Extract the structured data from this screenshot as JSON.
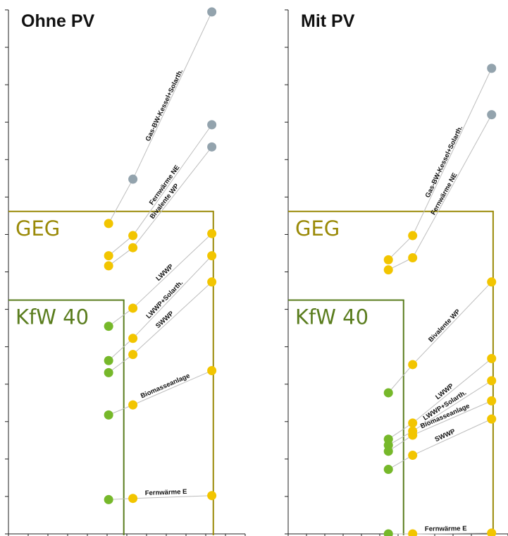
{
  "colors": {
    "geg": "#9a8a08",
    "kfw": "#5a7d1e",
    "green": "#76b82a",
    "yellow": "#f2c500",
    "gray": "#93a3ad",
    "link": "#bdbdbd",
    "axis": "#222222"
  },
  "chart_data": [
    {
      "type": "scatter",
      "title": "Ohne PV",
      "x_ticks": 12,
      "y_ticks": 14,
      "regions": [
        {
          "label": "GEG",
          "x_max": 6.75,
          "y_max": 8.0
        },
        {
          "label": "KfW 40",
          "x_max": 3.8,
          "y_max": 5.8
        }
      ],
      "series": [
        {
          "name": "Gas-BW-Kessel+Solarth.",
          "x": [
            3.3,
            4.1,
            6.7
          ],
          "y": [
            7.7,
            8.8,
            12.95
          ],
          "colors": [
            "yellow",
            "gray",
            "gray"
          ]
        },
        {
          "name": "Fernwärme NE",
          "x": [
            3.3,
            4.1,
            6.7
          ],
          "y": [
            6.9,
            7.4,
            10.15
          ],
          "colors": [
            "yellow",
            "yellow",
            "gray"
          ]
        },
        {
          "name": "Bivalente WP",
          "x": [
            3.3,
            4.1,
            6.7
          ],
          "y": [
            6.65,
            7.1,
            9.6
          ],
          "colors": [
            "yellow",
            "yellow",
            "gray"
          ]
        },
        {
          "name": "LWWP",
          "x": [
            3.3,
            4.1,
            6.7
          ],
          "y": [
            5.15,
            5.6,
            7.45
          ],
          "colors": [
            "green",
            "yellow",
            "yellow"
          ]
        },
        {
          "name": "LWWP+Solarth.",
          "x": [
            3.3,
            4.1,
            6.7
          ],
          "y": [
            4.3,
            4.85,
            6.9
          ],
          "colors": [
            "green",
            "yellow",
            "yellow"
          ]
        },
        {
          "name": "SWWP",
          "x": [
            3.3,
            4.1,
            6.7
          ],
          "y": [
            4.0,
            4.45,
            6.25
          ],
          "colors": [
            "green",
            "yellow",
            "yellow"
          ]
        },
        {
          "name": "Biomasseanlage",
          "x": [
            3.3,
            4.1,
            6.7
          ],
          "y": [
            2.95,
            3.2,
            4.05
          ],
          "colors": [
            "green",
            "yellow",
            "yellow"
          ]
        },
        {
          "name": "Fernwärme E",
          "x": [
            3.3,
            4.1,
            6.7
          ],
          "y": [
            0.85,
            0.88,
            0.95
          ],
          "colors": [
            "green",
            "yellow",
            "yellow"
          ]
        }
      ]
    },
    {
      "type": "scatter",
      "title": "Mit PV",
      "x_ticks": 12,
      "y_ticks": 14,
      "regions": [
        {
          "label": "GEG",
          "x_max": 6.75,
          "y_max": 8.0
        },
        {
          "label": "KfW 40",
          "x_max": 3.8,
          "y_max": 5.8
        }
      ],
      "series": [
        {
          "name": "Gas-BW-Kessel+Solarth.",
          "x": [
            3.3,
            4.1,
            6.7
          ],
          "y": [
            6.8,
            7.4,
            11.55
          ],
          "colors": [
            "yellow",
            "yellow",
            "gray"
          ]
        },
        {
          "name": "Fernwärme NE",
          "x": [
            3.3,
            4.1,
            6.7
          ],
          "y": [
            6.55,
            6.85,
            10.4
          ],
          "colors": [
            "yellow",
            "yellow",
            "gray"
          ]
        },
        {
          "name": "Bivalente WP",
          "x": [
            3.3,
            4.1,
            6.7
          ],
          "y": [
            3.5,
            4.2,
            6.25
          ],
          "colors": [
            "green",
            "yellow",
            "yellow"
          ]
        },
        {
          "name": "LWWP",
          "x": [
            3.3,
            4.1,
            6.7
          ],
          "y": [
            2.35,
            2.75,
            4.35
          ],
          "colors": [
            "green",
            "yellow",
            "yellow"
          ]
        },
        {
          "name": "LWWP+Solarth.",
          "x": [
            3.3,
            4.1,
            6.7
          ],
          "y": [
            2.2,
            2.55,
            3.8
          ],
          "colors": [
            "green",
            "yellow",
            "yellow"
          ]
        },
        {
          "name": "Biomasseanlage",
          "x": [
            3.3,
            4.1,
            6.7
          ],
          "y": [
            2.05,
            2.45,
            3.3
          ],
          "colors": [
            "green",
            "yellow",
            "yellow"
          ]
        },
        {
          "name": "SWWP",
          "x": [
            3.3,
            4.1,
            6.7
          ],
          "y": [
            1.6,
            1.95,
            2.85
          ],
          "colors": [
            "green",
            "yellow",
            "yellow"
          ]
        },
        {
          "name": "Fernwärme E",
          "x": [
            3.3,
            4.1,
            6.7
          ],
          "y": [
            0.0,
            0.0,
            0.02
          ],
          "colors": [
            "green",
            "yellow",
            "yellow"
          ]
        }
      ]
    }
  ]
}
